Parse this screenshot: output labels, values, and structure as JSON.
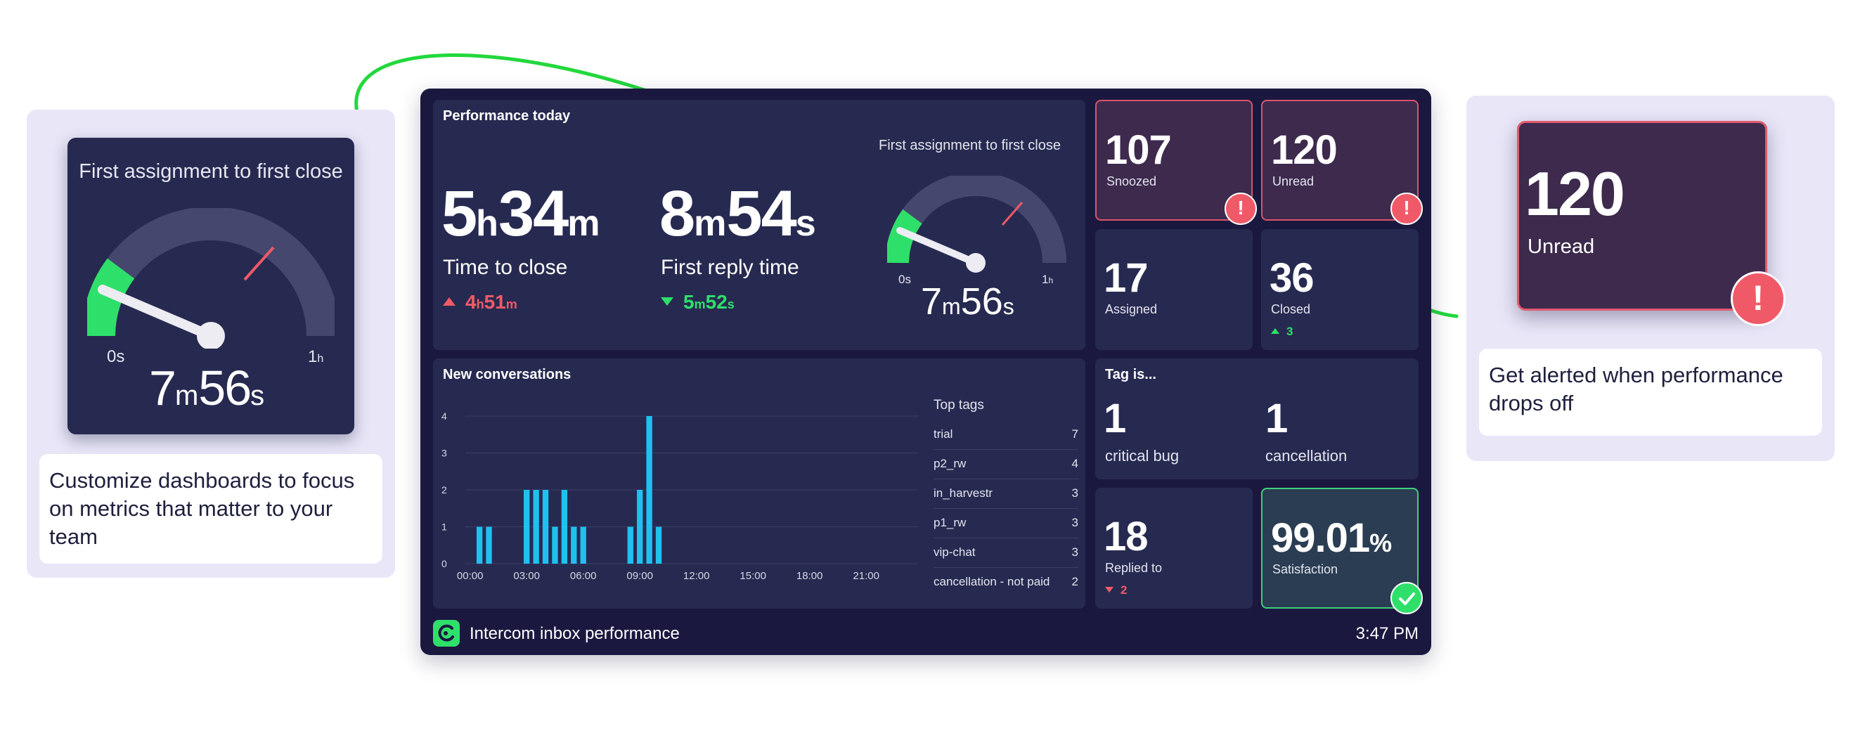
{
  "left_panel": {
    "gauge_title": "First assignment to first close",
    "gauge_min": "0s",
    "gauge_max_n": "1",
    "gauge_max_u": "h",
    "gauge_value_n1": "7",
    "gauge_value_u1": "m",
    "gauge_value_n2": "56",
    "gauge_value_u2": "s",
    "caption": "Customize dashboards to focus on metrics that matter to your team"
  },
  "right_panel": {
    "value": "120",
    "label": "Unread",
    "badge": "!",
    "caption": "Get alerted when performance drops off"
  },
  "dashboard": {
    "performance": {
      "title": "Performance today",
      "time_to_close": {
        "n1": "5",
        "u1": "h",
        "n2": "34",
        "u2": "m",
        "label": "Time to close",
        "delta_n1": "4",
        "delta_u1": "h",
        "delta_n2": "51",
        "delta_u2": "m"
      },
      "first_reply": {
        "n1": "8",
        "u1": "m",
        "n2": "54",
        "u2": "s",
        "label": "First reply time",
        "delta_n1": "5",
        "delta_u1": "m",
        "delta_n2": "52",
        "delta_u2": "s"
      },
      "gauge": {
        "title": "First assignment to first close",
        "min": "0s",
        "max_n": "1",
        "max_u": "h",
        "n1": "7",
        "u1": "m",
        "n2": "56",
        "u2": "s"
      }
    },
    "stats": {
      "snoozed": {
        "value": "107",
        "label": "Snoozed",
        "badge": "!"
      },
      "unread": {
        "value": "120",
        "label": "Unread",
        "badge": "!"
      },
      "assigned": {
        "value": "17",
        "label": "Assigned"
      },
      "closed": {
        "value": "36",
        "label": "Closed",
        "delta": "3"
      },
      "replied": {
        "value": "18",
        "label": "Replied to",
        "delta": "2"
      },
      "satisfaction": {
        "value": "99.01",
        "unit": "%",
        "label": "Satisfaction"
      }
    },
    "tag": {
      "title": "Tag is...",
      "items": [
        {
          "value": "1",
          "label": "critical bug"
        },
        {
          "value": "1",
          "label": "cancellation"
        }
      ]
    },
    "conversations": {
      "title": "New conversations",
      "tags_title": "Top tags",
      "tags": [
        {
          "name": "trial",
          "count": "7"
        },
        {
          "name": "p2_rw",
          "count": "4"
        },
        {
          "name": "in_harvestr",
          "count": "3"
        },
        {
          "name": "p1_rw",
          "count": "3"
        },
        {
          "name": "vip-chat",
          "count": "3"
        },
        {
          "name": "cancellation - not paid",
          "count": "2"
        }
      ]
    },
    "footer": {
      "title": "Intercom inbox performance",
      "time": "3:47 PM"
    }
  },
  "colors": {
    "background": "#1b1840",
    "tile": "#272a50",
    "bar": "#1fc1f0",
    "green": "#2ee06a",
    "red": "#f05a68",
    "arrow": "#22d83c"
  },
  "icons": [
    "alert-icon",
    "check-icon",
    "intercom-logo-icon",
    "up-arrow-icon",
    "down-arrow-icon"
  ],
  "chart_data": {
    "type": "bar",
    "title": "New conversations",
    "x": [
      "00:00",
      "00:30",
      "01:00",
      "01:30",
      "02:00",
      "02:30",
      "03:00",
      "03:30",
      "04:00",
      "04:30",
      "05:00",
      "05:30",
      "06:00",
      "06:30",
      "07:00",
      "07:30",
      "08:00",
      "08:30",
      "09:00",
      "09:30",
      "10:00",
      "10:30",
      "11:00",
      "11:30",
      "12:00",
      "12:30",
      "13:00",
      "13:30",
      "14:00",
      "14:30",
      "15:00",
      "15:30",
      "16:00",
      "16:30",
      "17:00",
      "17:30",
      "18:00",
      "18:30",
      "19:00",
      "19:30",
      "20:00",
      "20:30",
      "21:00",
      "21:30",
      "22:00",
      "22:30",
      "23:00",
      "23:30"
    ],
    "values": [
      0,
      1,
      1,
      0,
      0,
      0,
      2,
      2,
      2,
      1,
      2,
      1,
      1,
      0,
      0,
      0,
      0,
      1,
      2,
      4,
      1,
      0,
      0,
      0,
      0,
      0,
      0,
      0,
      0,
      0,
      0,
      0,
      0,
      0,
      0,
      0,
      0,
      0,
      0,
      0,
      0,
      0,
      0,
      0,
      0,
      0,
      0,
      0
    ],
    "x_tick_labels": [
      "00:00",
      "03:00",
      "06:00",
      "09:00",
      "12:00",
      "15:00",
      "18:00",
      "21:00"
    ],
    "y_ticks": [
      "0",
      "1",
      "2",
      "3",
      "4"
    ],
    "ylim": [
      0,
      4
    ],
    "grid": true
  }
}
